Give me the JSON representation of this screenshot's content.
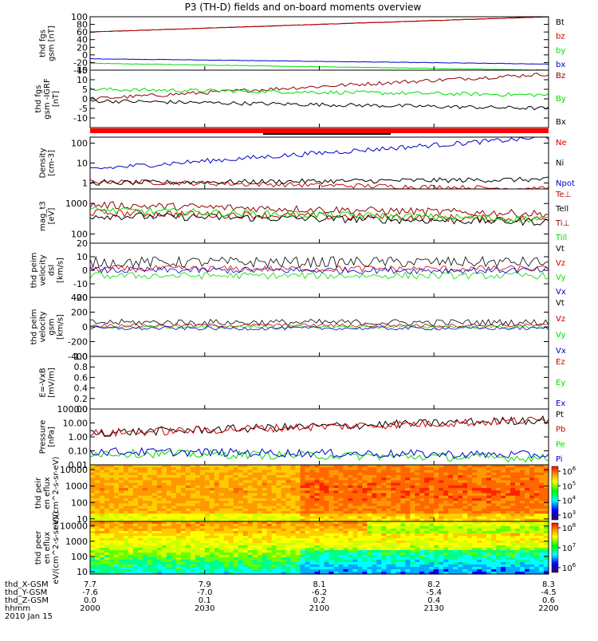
{
  "title": "P3 (TH-D) fields and on-board moments overview",
  "footer": {
    "rows": [
      {
        "label": "thd_X-GSM",
        "values": [
          "7.7",
          "7.9",
          "8.1",
          "8.2",
          "8.3"
        ]
      },
      {
        "label": "thd_Y-GSM",
        "values": [
          "-7.6",
          "-7.0",
          "-6.2",
          "-5.4",
          "-4.5"
        ]
      },
      {
        "label": "thd_Z-GSM",
        "values": [
          "0.0",
          "0.1",
          "0.2",
          "0.4",
          "0.6"
        ]
      },
      {
        "label": "hhmm",
        "values": [
          "2000",
          "2030",
          "2100",
          "2130",
          "2200"
        ]
      }
    ],
    "date": "2010 Jan 15"
  },
  "colors": {
    "black": "#000000",
    "red": "#cc0000",
    "green": "#00dd00",
    "blue": "#0000cc",
    "darkred": "#8b0000"
  },
  "chart_data": [
    {
      "type": "line",
      "ylabel": "thd fgs gsm [nT]",
      "ylim": [
        -40,
        100
      ],
      "yticks": [
        "100",
        "80",
        "60",
        "40",
        "20",
        "0",
        "-20",
        "-40"
      ],
      "legend": [
        "Bt",
        "bz",
        "by",
        "bx"
      ],
      "series": [
        {
          "name": "Bt",
          "start": 60,
          "end": 100
        },
        {
          "name": "bz",
          "start": 60,
          "end": 100
        },
        {
          "name": "by",
          "start": -22,
          "end": -40
        },
        {
          "name": "bx",
          "start": -10,
          "end": -24
        }
      ]
    },
    {
      "type": "line",
      "ylabel": "thd fgs gsm -IGRF [nT]",
      "ylim": [
        -15,
        15
      ],
      "yticks": [
        "15",
        "10",
        "5",
        "0",
        "-5",
        "-10"
      ],
      "legend": [
        "Bz",
        "By",
        "Bx"
      ],
      "series": [
        {
          "name": "Bz",
          "start": 0,
          "end": 13
        },
        {
          "name": "By",
          "start": 5,
          "end": 2
        },
        {
          "name": "Bx",
          "start": -1,
          "end": -5
        }
      ]
    },
    {
      "type": "line",
      "ylabel": "Density [cm-3]",
      "scale": "log",
      "ylim": [
        0.5,
        200
      ],
      "yticks": [
        "100",
        "10",
        "1"
      ],
      "legend": [
        "Ne",
        "Ni",
        "Npot"
      ],
      "series": [
        {
          "name": "Ne",
          "start": 1.2,
          "end": 0.5
        },
        {
          "name": "Ni",
          "start": 1.0,
          "end": 1.5
        },
        {
          "name": "Npot",
          "start": 5,
          "end": 200
        }
      ]
    },
    {
      "type": "line",
      "ylabel": "mag_t3 [eV]",
      "scale": "log",
      "ylim": [
        50,
        3000
      ],
      "yticks": [
        "1000",
        "100"
      ],
      "legend": [
        "Te⊥",
        "Tell",
        "Ti⊥",
        "Till"
      ],
      "series": [
        {
          "name": "Te⊥",
          "start": 500,
          "end": 300
        },
        {
          "name": "Tell",
          "start": 400,
          "end": 250
        },
        {
          "name": "Ti⊥",
          "start": 900,
          "end": 450
        },
        {
          "name": "Till",
          "start": 600,
          "end": 300
        }
      ]
    },
    {
      "type": "line",
      "ylabel": "thd peim velocity dsl [km/s]",
      "ylim": [
        -20,
        20
      ],
      "yticks": [
        "20",
        "10",
        "0",
        "-10",
        "-20"
      ],
      "legend": [
        "Vt",
        "Vz",
        "Vy",
        "Vx"
      ],
      "series": [
        {
          "name": "Vt",
          "start": 6,
          "end": 6
        },
        {
          "name": "Vz",
          "start": 1,
          "end": 1
        },
        {
          "name": "Vy",
          "start": -4,
          "end": -4
        },
        {
          "name": "Vx",
          "start": 0,
          "end": 0
        }
      ]
    },
    {
      "type": "line",
      "ylabel": "thd peim velocity gsm [km/s]",
      "ylim": [
        -400,
        400
      ],
      "yticks": [
        "400",
        "200",
        "0",
        "-200",
        "-400"
      ],
      "legend": [
        "Vt",
        "Vz",
        "Vy",
        "Vx"
      ],
      "series": [
        {
          "name": "Vt",
          "start": 60,
          "end": 60
        },
        {
          "name": "Vz",
          "start": 20,
          "end": 20
        },
        {
          "name": "Vy",
          "start": 0,
          "end": 0
        },
        {
          "name": "Vx",
          "start": -20,
          "end": -20
        }
      ]
    },
    {
      "type": "line",
      "ylabel": "E=-VxB [mV/m]",
      "ylim": [
        0,
        1
      ],
      "yticks": [
        "1.0",
        "0.8",
        "0.6",
        "0.4",
        "0.2",
        "0.0"
      ],
      "legend": [
        "Ez",
        "Ey",
        "Ex"
      ],
      "series": []
    },
    {
      "type": "line",
      "ylabel": "Pressure [nPa]",
      "scale": "log",
      "ylim": [
        0.01,
        100
      ],
      "yticks": [
        "100.00",
        "10.00",
        "1.00",
        "0.10",
        "0.01"
      ],
      "legend": [
        "Pt",
        "Pb",
        "Pe",
        "Pi"
      ],
      "series": [
        {
          "name": "Pt",
          "start": 1.9,
          "end": 17
        },
        {
          "name": "Pb",
          "start": 1.8,
          "end": 16
        },
        {
          "name": "Pe",
          "start": 0.07,
          "end": 0.03
        },
        {
          "name": "Pi",
          "start": 0.09,
          "end": 0.05
        }
      ]
    },
    {
      "type": "heatmap",
      "ylabel": "thd peir en eflux eV/(cm^2-s-sr-eV)",
      "scale": "log",
      "ylim": [
        7,
        20000
      ],
      "yticks": [
        "10000",
        "1000",
        "100",
        "10"
      ],
      "colorbar": [
        "10^6",
        "10^5",
        "10^4",
        "10^3"
      ]
    },
    {
      "type": "heatmap",
      "ylabel": "thd peer en eflux eV/(cm^2-s-sr-eV)",
      "scale": "log",
      "ylim": [
        7,
        20000
      ],
      "yticks": [
        "10000",
        "1000",
        "100",
        "10"
      ],
      "colorbar": [
        "10^8",
        "10^7",
        "10^6"
      ]
    }
  ]
}
